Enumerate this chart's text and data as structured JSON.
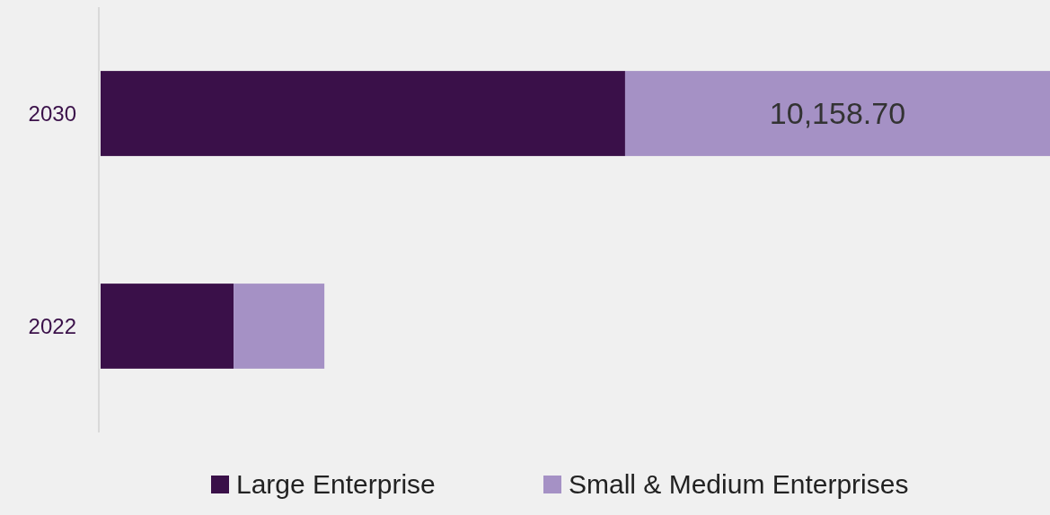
{
  "chart_data": {
    "type": "bar",
    "orientation": "horizontal",
    "stacked": true,
    "categories": [
      "2030",
      "2022"
    ],
    "series": [
      {
        "name": "Large Enterprise",
        "color": "#3a1049",
        "values": [
          12540,
          3180
        ]
      },
      {
        "name": "Small & Medium Enterprises",
        "color": "#a591c5",
        "values": [
          10158.7,
          2170
        ],
        "value_labels": [
          "10,158.70",
          null
        ]
      }
    ],
    "legend": "bottom"
  }
}
